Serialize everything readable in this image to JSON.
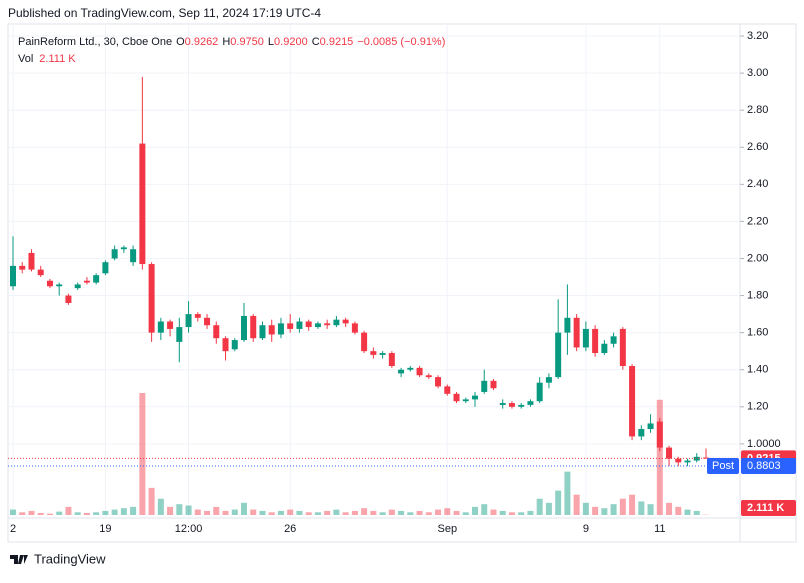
{
  "published": "Published on TradingView.com, Sep 11, 2024 17:19 UTC-4",
  "chart_data": {
    "type": "candlestick",
    "symbol": "PainReform Ltd., 30, Cboe One",
    "ohlc_legend": [
      {
        "label": "O",
        "value": "0.9262"
      },
      {
        "label": "H",
        "value": "0.9750"
      },
      {
        "label": "L",
        "value": "0.9200"
      },
      {
        "label": "C",
        "value": "0.9215"
      }
    ],
    "change": "−0.0085 (−0.91%)",
    "volume_label": "Vol",
    "volume_value": "2.111 K",
    "open": [
      1.85,
      1.96,
      2.03,
      1.94,
      1.88,
      1.85,
      1.8,
      1.84,
      1.88,
      1.87,
      1.92,
      2.0,
      2.05,
      1.98,
      2.62,
      1.97,
      1.6,
      1.66,
      1.55,
      1.63,
      1.7,
      1.68,
      1.64,
      1.57,
      1.51,
      1.56,
      1.69,
      1.57,
      1.64,
      1.59,
      1.65,
      1.62,
      1.66,
      1.63,
      1.65,
      1.64,
      1.67,
      1.65,
      1.6,
      1.5,
      1.48,
      1.49,
      1.38,
      1.4,
      1.41,
      1.37,
      1.36,
      1.31,
      1.27,
      1.23,
      1.24,
      1.28,
      1.34,
      1.21,
      1.22,
      1.2,
      1.21,
      1.23,
      1.33,
      1.36,
      1.6,
      1.68,
      1.52,
      1.62,
      1.49,
      1.54,
      1.62,
      1.42,
      1.04,
      1.08,
      1.12,
      0.98,
      0.92,
      0.9,
      0.91,
      0.9262
    ],
    "high": [
      2.12,
      1.98,
      2.05,
      1.96,
      1.89,
      1.87,
      1.81,
      1.87,
      1.9,
      1.92,
      1.99,
      2.07,
      2.07,
      2.07,
      2.98,
      1.98,
      1.68,
      1.67,
      1.68,
      1.77,
      1.71,
      1.7,
      1.66,
      1.58,
      1.57,
      1.76,
      1.7,
      1.66,
      1.67,
      1.68,
      1.7,
      1.68,
      1.67,
      1.66,
      1.67,
      1.69,
      1.68,
      1.66,
      1.61,
      1.52,
      1.5,
      1.5,
      1.41,
      1.42,
      1.42,
      1.38,
      1.37,
      1.32,
      1.28,
      1.25,
      1.28,
      1.4,
      1.35,
      1.24,
      1.23,
      1.22,
      1.24,
      1.36,
      1.38,
      1.78,
      1.86,
      1.7,
      1.66,
      1.64,
      1.56,
      1.6,
      1.63,
      1.43,
      1.1,
      1.16,
      1.14,
      0.99,
      0.93,
      0.92,
      0.95,
      0.975
    ],
    "low": [
      1.83,
      1.92,
      1.93,
      1.9,
      1.84,
      1.8,
      1.75,
      1.83,
      1.86,
      1.86,
      1.91,
      1.99,
      2.03,
      1.96,
      1.94,
      1.55,
      1.56,
      1.58,
      1.44,
      1.6,
      1.66,
      1.62,
      1.54,
      1.45,
      1.5,
      1.55,
      1.55,
      1.56,
      1.55,
      1.57,
      1.6,
      1.6,
      1.61,
      1.62,
      1.62,
      1.63,
      1.63,
      1.59,
      1.49,
      1.46,
      1.46,
      1.41,
      1.36,
      1.39,
      1.36,
      1.35,
      1.3,
      1.26,
      1.22,
      1.22,
      1.2,
      1.27,
      1.29,
      1.19,
      1.19,
      1.19,
      1.2,
      1.22,
      1.3,
      1.35,
      1.48,
      1.5,
      1.5,
      1.47,
      1.48,
      1.52,
      1.4,
      1.02,
      1.02,
      1.06,
      0.96,
      0.88,
      0.88,
      0.88,
      0.9,
      0.92
    ],
    "close": [
      1.96,
      1.94,
      1.94,
      1.91,
      1.85,
      1.86,
      1.76,
      1.86,
      1.87,
      1.91,
      1.98,
      2.05,
      2.06,
      2.05,
      1.97,
      1.6,
      1.66,
      1.62,
      1.63,
      1.7,
      1.68,
      1.64,
      1.57,
      1.5,
      1.56,
      1.69,
      1.57,
      1.64,
      1.59,
      1.65,
      1.62,
      1.66,
      1.63,
      1.65,
      1.64,
      1.67,
      1.65,
      1.6,
      1.5,
      1.48,
      1.49,
      1.42,
      1.4,
      1.41,
      1.37,
      1.36,
      1.31,
      1.27,
      1.23,
      1.24,
      1.26,
      1.34,
      1.3,
      1.22,
      1.2,
      1.21,
      1.23,
      1.33,
      1.36,
      1.6,
      1.68,
      1.52,
      1.62,
      1.49,
      1.54,
      1.58,
      1.42,
      1.04,
      1.08,
      1.11,
      0.98,
      0.92,
      0.9,
      0.91,
      0.93,
      0.9215
    ],
    "volume": [
      40,
      20,
      30,
      15,
      10,
      25,
      60,
      20,
      15,
      20,
      30,
      40,
      50,
      60,
      900,
      200,
      120,
      60,
      80,
      70,
      40,
      30,
      60,
      30,
      40,
      90,
      40,
      30,
      20,
      30,
      40,
      30,
      20,
      20,
      30,
      40,
      20,
      30,
      50,
      30,
      20,
      40,
      30,
      20,
      30,
      20,
      40,
      50,
      30,
      20,
      60,
      80,
      40,
      30,
      20,
      20,
      30,
      120,
      90,
      180,
      320,
      150,
      90,
      60,
      50,
      80,
      120,
      150,
      100,
      80,
      850,
      90,
      60,
      40,
      30,
      2.111
    ],
    "up_color": "#089981",
    "down_color": "#f23645",
    "ylim": [
      0.6,
      3.265
    ],
    "yticks": [
      {
        "value": 1,
        "label": "1.0000"
      },
      {
        "value": 1.2,
        "label": "1.20"
      },
      {
        "value": 1.4,
        "label": "1.40"
      },
      {
        "value": 1.6,
        "label": "1.60"
      },
      {
        "value": 1.8,
        "label": "1.80"
      },
      {
        "value": 2,
        "label": "2.00"
      },
      {
        "value": 2.2,
        "label": "2.20"
      },
      {
        "value": 2.4,
        "label": "2.40"
      },
      {
        "value": 2.6,
        "label": "2.60"
      },
      {
        "value": 2.8,
        "label": "2.80"
      },
      {
        "value": 3,
        "label": "3.00"
      },
      {
        "value": 3.2,
        "label": "3.20"
      }
    ],
    "xticks": [
      {
        "value": 0,
        "label": "2"
      },
      {
        "value": 10,
        "label": "19"
      },
      {
        "value": 19,
        "label": "12:00"
      },
      {
        "value": 30,
        "label": "26"
      },
      {
        "value": 47,
        "label": "Sep"
      },
      {
        "value": 62,
        "label": "9"
      },
      {
        "value": 70,
        "label": "11"
      }
    ],
    "grid": true,
    "last_price": {
      "value": 0.9215,
      "label": "0.9215"
    },
    "post": {
      "name": "Post",
      "value": 0.8803,
      "label": "0.8803"
    }
  },
  "footer": "TradingView"
}
